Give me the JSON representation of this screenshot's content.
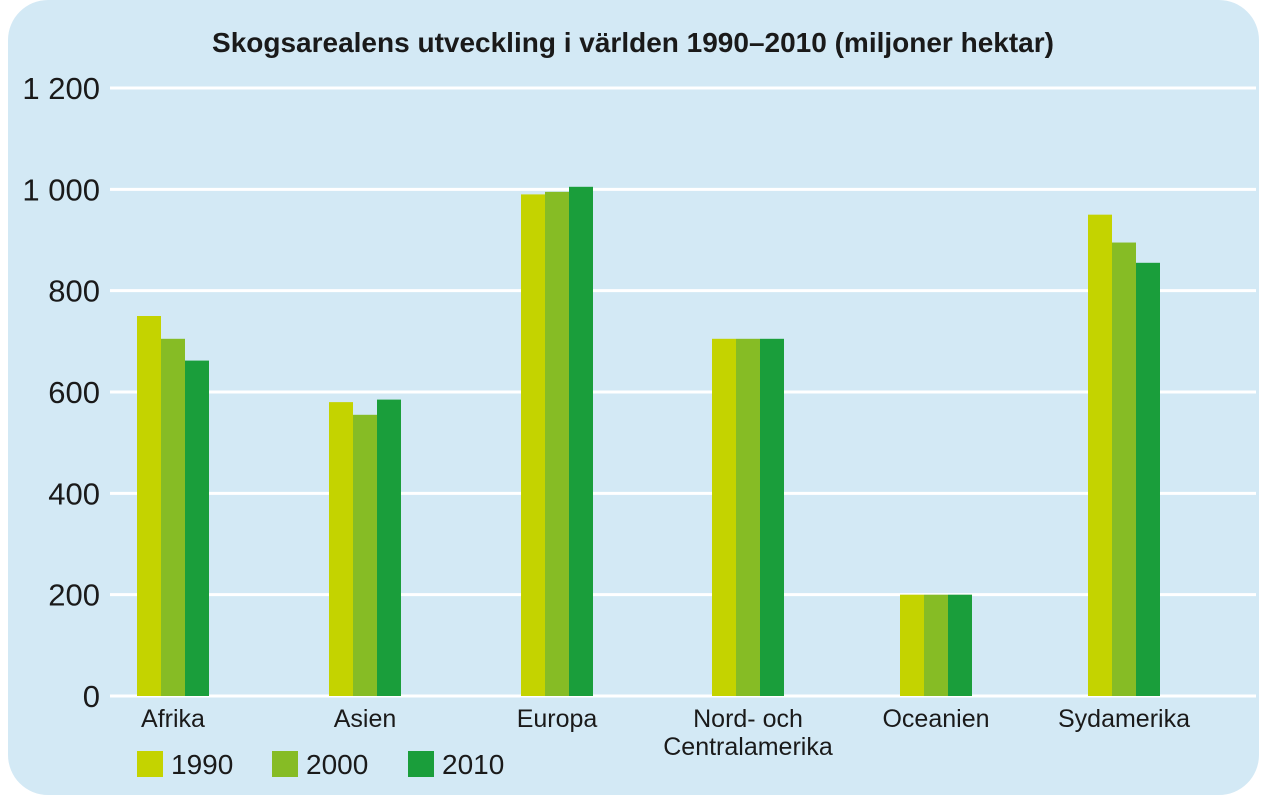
{
  "chart_data": {
    "type": "bar",
    "title": "Skogsarealens utveckling i världen 1990–2010 (miljoner hektar)",
    "xlabel": "",
    "ylabel": "",
    "ylim": [
      0,
      1200
    ],
    "yticks": [
      0,
      200,
      400,
      600,
      800,
      1000,
      1200
    ],
    "ytick_labels": [
      "0",
      "200",
      "400",
      "600",
      "800",
      "1 000",
      "1 200"
    ],
    "grid": true,
    "legend_position": "bottom-left",
    "categories": [
      [
        "Afrika"
      ],
      [
        "Asien"
      ],
      [
        "Europa"
      ],
      [
        "Nord- och",
        "Centralamerika"
      ],
      [
        "Oceanien"
      ],
      [
        "Sydamerika"
      ]
    ],
    "series": [
      {
        "name": "1990",
        "color": "#c4d300",
        "values": [
          750,
          580,
          990,
          705,
          200,
          950
        ]
      },
      {
        "name": "2000",
        "color": "#86bc25",
        "values": [
          705,
          555,
          995,
          705,
          200,
          895
        ]
      },
      {
        "name": "2010",
        "color": "#1a9e3b",
        "values": [
          662,
          585,
          1005,
          705,
          200,
          855
        ]
      }
    ]
  }
}
